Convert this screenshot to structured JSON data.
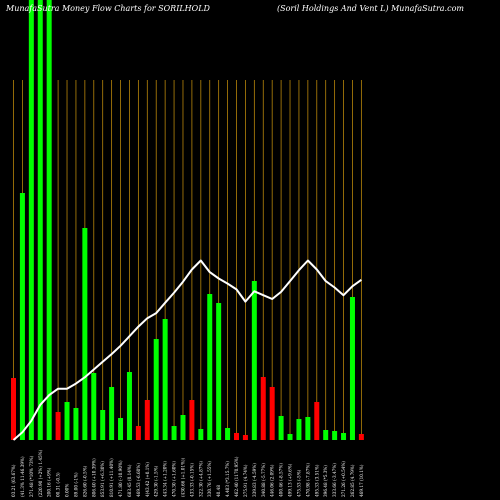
{
  "chart_data": {
    "type": "bar",
    "title": "MunafaSutra  Money Flow  Charts for SORILHOLD",
    "subtitle": "(Soril Holdings And Vent L) MunafaSutra.com",
    "colors": {
      "background": "#000000",
      "up": "#00ff00",
      "down": "#ff0000",
      "line": "#ffffff",
      "gridline": "#b8860b"
    },
    "ylim": [
      0,
      440
    ],
    "line_range": [
      0,
      440
    ],
    "series": [
      {
        "type": "bar",
        "values": [
          62,
          247,
          440,
          440,
          440,
          28,
          38,
          32,
          212,
          67,
          30,
          53,
          22,
          68,
          14,
          40,
          101,
          121,
          14,
          25,
          40,
          11,
          146,
          137,
          12,
          7,
          5,
          159,
          63,
          53,
          24,
          6,
          21,
          23,
          38,
          10,
          9,
          7,
          143,
          6
        ],
        "direction": [
          "down",
          "up",
          "up",
          "up",
          "up",
          "down",
          "up",
          "up",
          "up",
          "up",
          "up",
          "up",
          "up",
          "up",
          "down",
          "down",
          "up",
          "up",
          "up",
          "up",
          "down",
          "up",
          "up",
          "up",
          "up",
          "down",
          "down",
          "up",
          "down",
          "down",
          "up",
          "up",
          "up",
          "up",
          "down",
          "up",
          "up",
          "up",
          "up",
          "down"
        ]
      },
      {
        "type": "line",
        "values": [
          0,
          12,
          30,
          55,
          70,
          80,
          80,
          88,
          98,
          110,
          122,
          134,
          147,
          162,
          177,
          190,
          198,
          214,
          230,
          247,
          266,
          280,
          262,
          252,
          244,
          235,
          216,
          232,
          226,
          220,
          231,
          248,
          265,
          280,
          266,
          248,
          238,
          226,
          240,
          250
        ]
      }
    ],
    "x_tick_labels": [
      "03.21 (63.67%)",
      "(41.3% 11:46.39%)",
      "271.48 (*10% 73%)",
      "(220.90 (+2%) 1.45%)",
      "200.16 (+9%)",
      "00.31 (-0.5)",
      "0.00%",
      "89.00 (-1%)",
      "826.60 (-0.5%)",
      "806.40 (+10.39%)",
      "853.91 (+6.30%)",
      "810.91 (+11.40%)",
      "471.80 (-10.90%)",
      "683.45 (0.14%)",
      "469.53 (-6.60%)",
      "4(43.42 (+0.1%)",
      "429.30 (-1.5%)",
      "443.34 (+1.20%)",
      "470.30 (+1.60%)",
      "(430.66 (+1.01%))",
      "433.33 (-0.15%)",
      "322.30 (+4.87%)",
      "330.76 (+1.55%)",
      "40.48",
      "4.403 (*3.15.7%)",
      "462.40 (1170.95%)",
      "275.91 (4.74%)",
      "339.83 (-4.59%)",
      "340.88 (-5.77%)",
      "446.06 (2.09%)",
      "400.46 (-8.57%)",
      "499.13 (+9.6%)",
      "475.53 (-5%)",
      "470.98 (-7.87%)",
      "495.33 (3.51%)",
      "396.48 (*5.3%)",
      "333.66 (-3.47%)",
      "271.26 (+0.54%)",
      "262.85 (4.79%)",
      "469.17 (10.1%)"
    ]
  }
}
